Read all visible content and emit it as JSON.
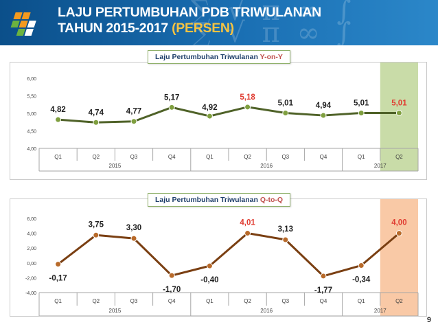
{
  "header": {
    "title_line1": "LAJU PERTUMBUHAN PDB TRIWULANAN",
    "title_line2": "TAHUN 2015-2017 ",
    "title_accent": "(PERSEN)",
    "background_color": "#1a6fb3"
  },
  "charts": {
    "yoy": {
      "title_prefix": "Laju Pertumbuhan Triwulanan ",
      "title_accent": "Y-on-Y"
    },
    "qtq": {
      "title_prefix": "Laju Pertumbuhan Triwulanan ",
      "title_accent": "Q-to-Q"
    }
  },
  "page_number": "9",
  "chart_data": [
    {
      "type": "line",
      "categories": [
        "Q1",
        "Q2",
        "Q3",
        "Q4",
        "Q1",
        "Q2",
        "Q3",
        "Q4",
        "Q1",
        "Q2"
      ],
      "year_groups": [
        {
          "label": "2015",
          "start": 0,
          "end": 3
        },
        {
          "label": "2016",
          "start": 4,
          "end": 7
        },
        {
          "label": "2017",
          "start": 8,
          "end": 9
        }
      ],
      "series": [
        {
          "values": [
            4.82,
            4.74,
            4.77,
            5.17,
            4.92,
            5.18,
            5.01,
            4.94,
            5.01,
            5.01
          ],
          "labels": [
            "4,82",
            "4,74",
            "4,77",
            "5,17",
            "4,92",
            "5,18",
            "5,01",
            "4,94",
            "5,01",
            "5,01"
          ],
          "highlight_labels": [
            5,
            9
          ]
        }
      ],
      "ylim": [
        4.0,
        6.0
      ],
      "yticks": [
        4.0,
        4.5,
        5.0,
        5.5,
        6.0
      ],
      "ytick_labels": [
        "4,00",
        "4,50",
        "5,00",
        "5,50",
        "6,00"
      ],
      "highlight_column": 9,
      "grid": false,
      "colors": {
        "line": "#4f6228",
        "marker_fill": "#7f9f3f",
        "highlight_label": "#e03c31",
        "label": "#1f1f1f",
        "highlight_band": "#c9dca8"
      }
    },
    {
      "type": "line",
      "categories": [
        "Q1",
        "Q2",
        "Q3",
        "Q4",
        "Q1",
        "Q2",
        "Q3",
        "Q4",
        "Q1",
        "Q2"
      ],
      "year_groups": [
        {
          "label": "2015",
          "start": 0,
          "end": 3
        },
        {
          "label": "2016",
          "start": 4,
          "end": 7
        },
        {
          "label": "2017",
          "start": 8,
          "end": 9
        }
      ],
      "series": [
        {
          "values": [
            -0.17,
            3.75,
            3.3,
            -1.7,
            -0.4,
            4.01,
            3.13,
            -1.77,
            -0.34,
            4.0
          ],
          "labels": [
            "-0,17",
            "3,75",
            "3,30",
            "-1,70",
            "-0,40",
            "4,01",
            "3,13",
            "-1,77",
            "-0,34",
            "4,00"
          ],
          "highlight_labels": [
            5,
            9
          ]
        }
      ],
      "ylim": [
        -4.0,
        6.0
      ],
      "yticks": [
        -4.0,
        -2.0,
        0.0,
        2.0,
        4.0,
        6.0
      ],
      "ytick_labels": [
        "-4,00",
        "-2,00",
        "0,00",
        "2,00",
        "4,00",
        "6,00"
      ],
      "highlight_column": 9,
      "grid": false,
      "colors": {
        "line": "#7a3f12",
        "marker_fill": "#b86a2a",
        "highlight_label": "#e03c31",
        "label": "#1f1f1f",
        "highlight_band": "#f9c9a6"
      }
    }
  ]
}
